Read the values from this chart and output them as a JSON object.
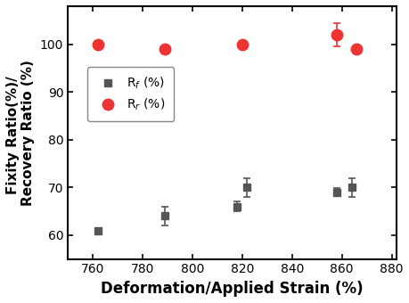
{
  "Rf_x": [
    762,
    789,
    818,
    822,
    858,
    864
  ],
  "Rf_y": [
    61,
    64,
    66,
    70,
    69,
    70
  ],
  "Rf_yerr": [
    0.5,
    2.0,
    1.0,
    2.0,
    0.8,
    2.0
  ],
  "Rr_x": [
    762,
    789,
    820,
    858,
    866
  ],
  "Rr_y": [
    100,
    99,
    100,
    102,
    99
  ],
  "Rr_yerr": [
    0.5,
    0.5,
    0.5,
    2.5,
    0.5
  ],
  "xlabel": "Deformation/Applied Strain (%)",
  "ylabel": "Fixity Ratio(%)/ \nRecovery Ratio (%)",
  "xlim": [
    750,
    882
  ],
  "ylim": [
    55,
    108
  ],
  "xticks": [
    760,
    780,
    800,
    820,
    840,
    860,
    880
  ],
  "yticks": [
    60,
    70,
    80,
    90,
    100
  ],
  "gray_color": "#555555",
  "red_color": "#ee3333",
  "background": "#ffffff",
  "legend_Rf": "R$_f$ (%)",
  "legend_Rr": "R$_r$ (%)",
  "marker_size_sq": 6,
  "marker_size_ci": 9,
  "elinewidth": 1.2,
  "capsize": 3,
  "capthick": 1.2,
  "xlabel_fontsize": 12,
  "ylabel_fontsize": 11,
  "tick_fontsize": 10,
  "legend_fontsize": 10
}
